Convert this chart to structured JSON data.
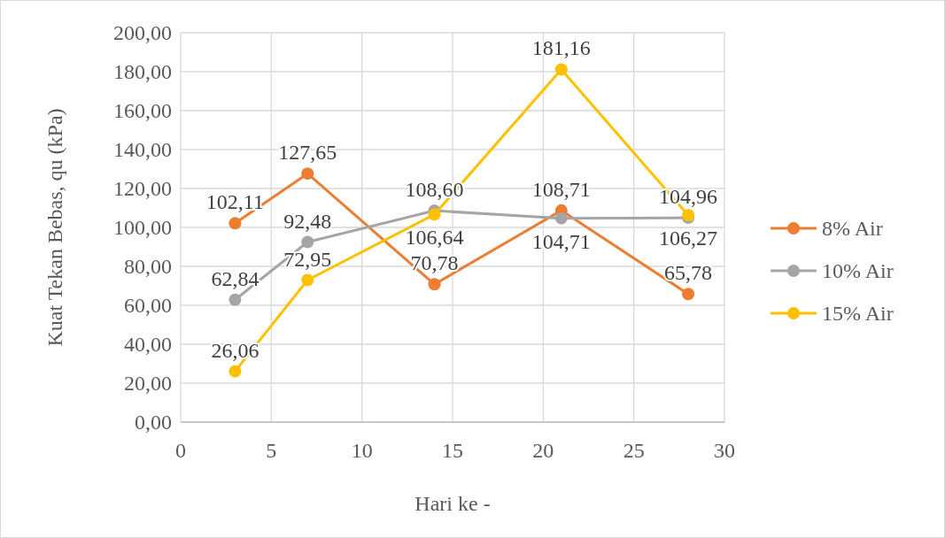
{
  "chart_data": {
    "type": "line",
    "xlabel": "Hari ke -",
    "ylabel": "Kuat Tekan Bebas, qu (kPa)",
    "x": [
      3,
      7,
      14,
      21,
      28
    ],
    "series": [
      {
        "name": "8% Air",
        "color": "#ed7d31",
        "values": [
          102.11,
          127.65,
          70.78,
          108.71,
          65.78
        ],
        "value_labels": [
          "102,11",
          "127,65",
          "70,78",
          "108,71",
          "65,78"
        ]
      },
      {
        "name": "10% Air",
        "color": "#a5a5a5",
        "values": [
          62.84,
          92.48,
          108.6,
          104.71,
          104.96
        ],
        "value_labels": [
          "62,84",
          "92,48",
          "108,60",
          "104,71",
          "104,96"
        ]
      },
      {
        "name": "15% Air",
        "color": "#ffc000",
        "values": [
          26.06,
          72.95,
          106.64,
          181.16,
          106.27
        ],
        "value_labels": [
          "26,06",
          "72,95",
          "106,64",
          "181,16",
          "106,27"
        ]
      }
    ],
    "xlim": [
      0,
      30
    ],
    "xticks": [
      0,
      5,
      10,
      15,
      20,
      25,
      30
    ],
    "ylim": [
      0,
      200
    ],
    "yticks": [
      {
        "value": 0,
        "label": "0,00"
      },
      {
        "value": 20,
        "label": "20,00"
      },
      {
        "value": 40,
        "label": "40,00"
      },
      {
        "value": 60,
        "label": "60,00"
      },
      {
        "value": 80,
        "label": "80,00"
      },
      {
        "value": 100,
        "label": "100,00"
      },
      {
        "value": 120,
        "label": "120,00"
      },
      {
        "value": 140,
        "label": "140,00"
      },
      {
        "value": 160,
        "label": "160,00"
      },
      {
        "value": 180,
        "label": "180,00"
      },
      {
        "value": 200,
        "label": "200,00"
      }
    ],
    "grid": true,
    "legend": "right",
    "marker": "circle",
    "line_style": "solid"
  }
}
